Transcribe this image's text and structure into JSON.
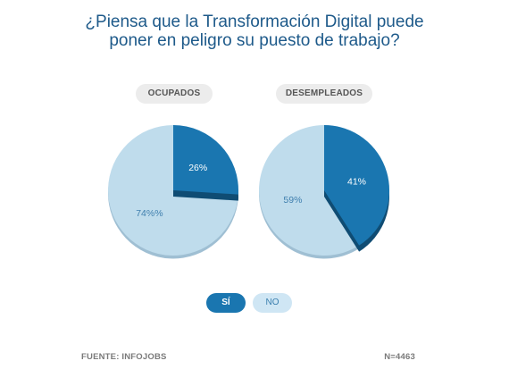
{
  "title": {
    "line1": "¿Piensa que la Transformación Digital puede",
    "line2": "poner en peligro su puesto de trabajo?"
  },
  "colors": {
    "si": "#1a76b0",
    "si_shadow": "#0f4c73",
    "no": "#bfdcec",
    "no_shadow": "#9fbfd3",
    "title": "#1e5a8a"
  },
  "chart_data": [
    {
      "type": "pie",
      "title": "OCUPADOS",
      "categories": [
        "SÍ",
        "NO"
      ],
      "values": [
        26,
        74
      ],
      "labels": [
        "26%",
        "74%%"
      ]
    },
    {
      "type": "pie",
      "title": "DESEMPLEADOS",
      "categories": [
        "SÍ",
        "NO"
      ],
      "values": [
        41,
        59
      ],
      "labels": [
        "41%",
        "59%"
      ]
    }
  ],
  "legend": {
    "si": "SÍ",
    "no": "NO"
  },
  "footer": {
    "source": "FUENTE: INFOJOBS",
    "n": "N=4463"
  }
}
